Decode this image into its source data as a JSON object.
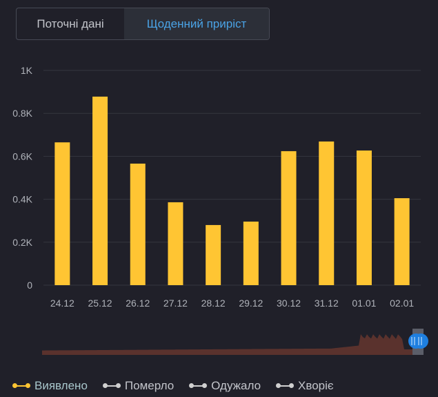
{
  "tabs": [
    {
      "label": "Поточні дані",
      "active": false
    },
    {
      "label": "Щоденний приріст",
      "active": true
    }
  ],
  "colors": {
    "bar": "#ffc533",
    "navigator": "#5a322d",
    "handle": "#1e7fe0",
    "active_tab": "#4aa3e6"
  },
  "chart_data": {
    "type": "bar",
    "categories": [
      "24.12",
      "25.12",
      "26.12",
      "27.12",
      "28.12",
      "29.12",
      "30.12",
      "31.12",
      "01.01",
      "02.01"
    ],
    "series": [
      {
        "name": "Виявлено",
        "values": [
          665,
          878,
          566,
          386,
          280,
          296,
          624,
          669,
          627,
          405
        ]
      }
    ],
    "yticks": [
      {
        "v": 0,
        "label": "0"
      },
      {
        "v": 200,
        "label": "0.2K"
      },
      {
        "v": 400,
        "label": "0.4K"
      },
      {
        "v": 600,
        "label": "0.6K"
      },
      {
        "v": 800,
        "label": "0.8K"
      },
      {
        "v": 1000,
        "label": "1K"
      }
    ],
    "ylim": [
      0,
      1000
    ],
    "grid": true,
    "legend_position": "bottom-left"
  },
  "legend": [
    {
      "label": "Виявлено",
      "active": true
    },
    {
      "label": "Померло",
      "active": false
    },
    {
      "label": "Одужало",
      "active": false
    },
    {
      "label": "Хворіє",
      "active": false
    }
  ]
}
